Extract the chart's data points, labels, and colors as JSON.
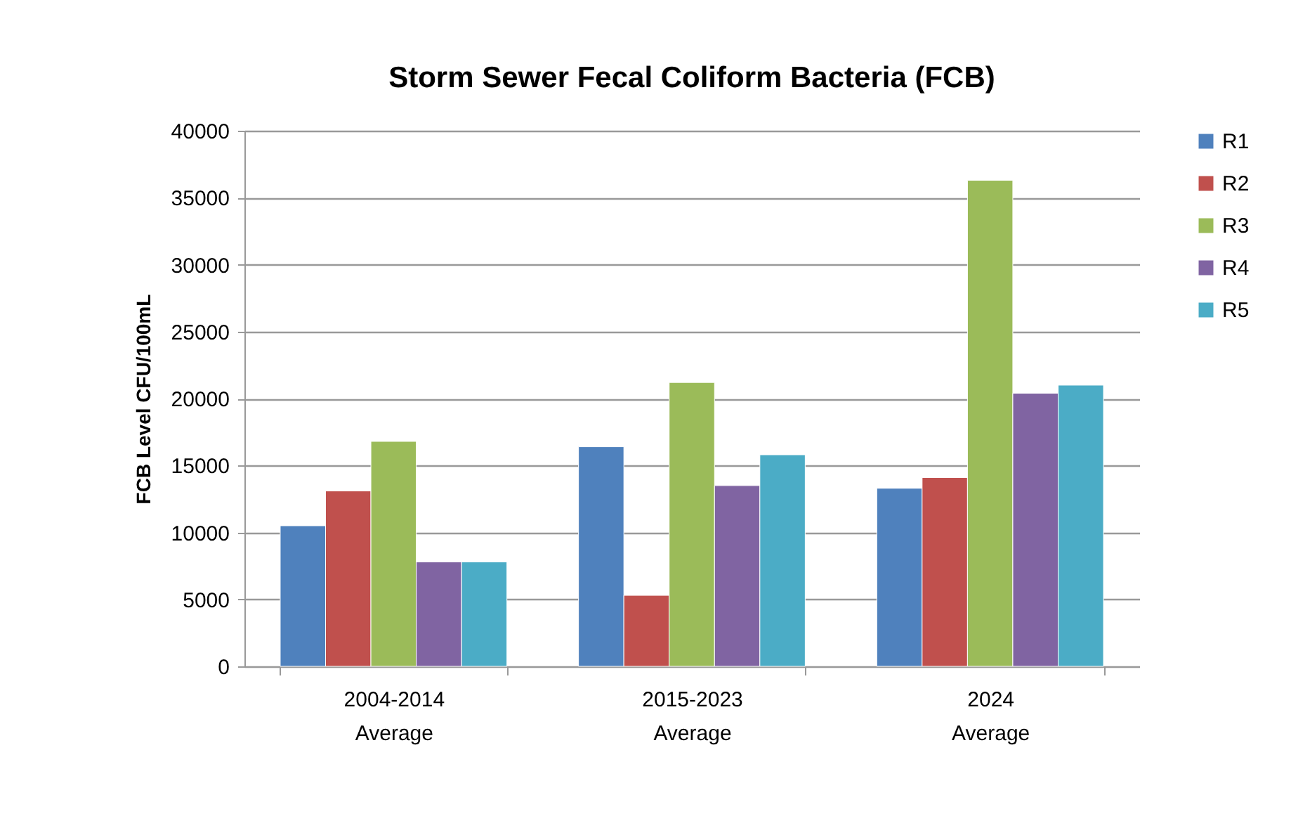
{
  "chart_data": {
    "type": "bar",
    "title": "Storm Sewer Fecal Coliform Bacteria (FCB)",
    "ylabel": "FCB Level CFU/100mL",
    "categories": [
      "2004-2014 Average",
      "2015-2023 Average",
      "2024 Average"
    ],
    "series": [
      {
        "name": "R1",
        "color": "#4f81bd",
        "values": [
          10500,
          16400,
          13300
        ]
      },
      {
        "name": "R2",
        "color": "#c0504d",
        "values": [
          13100,
          5300,
          14100
        ]
      },
      {
        "name": "R3",
        "color": "#9bbb59",
        "values": [
          16800,
          21200,
          36300
        ]
      },
      {
        "name": "R4",
        "color": "#8064a2",
        "values": [
          7800,
          13500,
          20400
        ]
      },
      {
        "name": "R5",
        "color": "#4bacc6",
        "values": [
          7800,
          15800,
          21000
        ]
      }
    ],
    "ylim": [
      0,
      40000
    ],
    "yticks": [
      0,
      5000,
      10000,
      15000,
      20000,
      25000,
      30000,
      35000,
      40000
    ],
    "grid": "y",
    "legend": "right"
  }
}
